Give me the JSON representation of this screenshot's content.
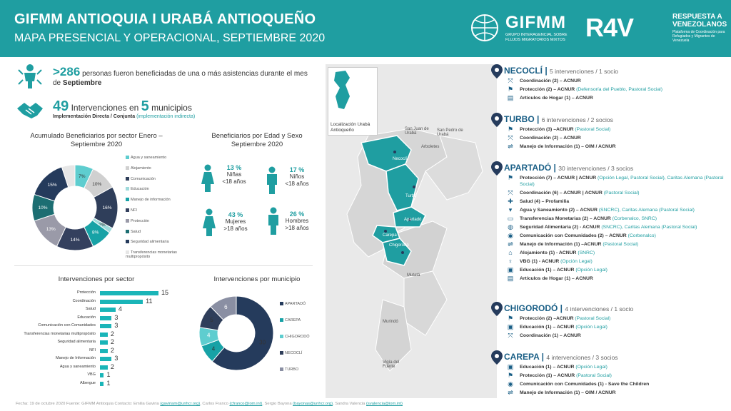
{
  "header": {
    "title": "GIFMM ANTIOQUIA I URABÁ ANTIOQUEÑO",
    "subtitle": "MAPA PRESENCIAL Y OPERACIONAL, SEPTIEMBRE 2020",
    "gifmm_logo": "GIFMM",
    "gifmm_tagline": "GRUPO INTERAGENCIAL SOBRE FLUJOS MIGRATORIOS MIXTOS",
    "r4v_logo": "R4V",
    "r4v_line1": "RESPUESTA A VENEZOLANOS",
    "r4v_line2": "Plataforma de Coordinación para Refugiados y Migrantes de Venezuela"
  },
  "summary": {
    "beneficiaries": ">286",
    "beneficiaries_text": "personas fueron beneficiadas de una o más asistencias durante el mes de",
    "month": "Septiembre",
    "interventions": "49",
    "interventions_text": "Intervenciones en",
    "municipalities": "5",
    "municipalities_text": "municipios",
    "impl_text": "Implementación Directa / Conjunta",
    "impl_indirect": "(implementación indirecta)"
  },
  "donut_sector": {
    "title": "Acumulado Beneficiarios por sector Enero – Septiembre 2020"
  },
  "chart_data": [
    {
      "type": "pie",
      "title": "Acumulado Beneficiarios por sector Enero – Septiembre 2020",
      "categories": [
        "Agua y saneamiento",
        "Alojamiento",
        "Comunicación",
        "Educación",
        "Manejo de información",
        "NFI",
        "Protección",
        "Salud",
        "Seguridad alimentaria",
        "Transferencias monetarias multipropósito"
      ],
      "values": [
        7,
        10,
        16,
        2,
        8,
        14,
        13,
        10,
        15,
        5
      ],
      "labels": [
        "7%",
        "10%",
        "16%",
        "2%",
        "8%",
        "14%",
        "13%",
        "10%",
        "15%",
        ""
      ],
      "colors": [
        "#5ecdcf",
        "#d0d0d0",
        "#2f3e5a",
        "#9fdadb",
        "#17a2a6",
        "#34405e",
        "#9a9aa8",
        "#1c6e72",
        "#253b5c",
        "#e6e6e6"
      ]
    },
    {
      "type": "bar",
      "title": "Intervenciones por sector",
      "categories": [
        "Protección",
        "Coordinación",
        "Salud",
        "Educación",
        "Comunicación con Comunidades",
        "Transferencias monetarias multipropósito",
        "Seguridad alimentaria",
        "NFI",
        "Manejo de Información",
        "Agua y saneamiento",
        "VBG",
        "Albergue"
      ],
      "values": [
        15,
        11,
        4,
        3,
        3,
        2,
        2,
        2,
        3,
        2,
        1,
        1
      ],
      "xlim": [
        0,
        15
      ]
    },
    {
      "type": "pie",
      "title": "Intervenciones por municipio",
      "categories": [
        "APARTADÓ",
        "CAREPA",
        "CHIGORODÓ",
        "NECOCLÍ",
        "TURBO"
      ],
      "values": [
        30,
        4,
        4,
        5,
        6
      ],
      "colors": [
        "#253b5c",
        "#17a2a6",
        "#5ecdcf",
        "#2f3e5a",
        "#8a8fa3"
      ]
    }
  ],
  "age_sex": {
    "title": "Beneficiarios por Edad y Sexo Septiembre 2020",
    "groups": [
      {
        "pct": "13 %",
        "label": "Niñas",
        "sub": "<18 años",
        "share": 13
      },
      {
        "pct": "17 %",
        "label": "Niños",
        "sub": "<18 años",
        "share": 17
      },
      {
        "pct": "43 %",
        "label": "Mujeres",
        "sub": ">18 años",
        "share": 43
      },
      {
        "pct": "26 %",
        "label": "Hombres",
        "sub": ">18 años",
        "share": 26
      }
    ]
  },
  "map": {
    "inset_label": "Localización Urabá Antioqueño",
    "labels": [
      "San Juan de Urabá",
      "Arboletes",
      "San Pedro de Urabá",
      "Necoclí",
      "Turbo",
      "Apartadó",
      "Carepa",
      "Chigorodó",
      "Mutatá",
      "Murindó",
      "Vigía del Fuerte"
    ]
  },
  "municipalities": [
    {
      "name": "NECOCLÍ",
      "meta": "5 intervenciones / 1 socio",
      "acts": [
        {
          "icon": "coordination-icon",
          "text": "Coordinación (2) – ACNUR",
          "extra": ""
        },
        {
          "icon": "protection-icon",
          "text": "Protección (2) – ACNUR",
          "extra": "(Defensoría del Pueblo, Pastoral Social)"
        },
        {
          "icon": "household-items-icon",
          "text": "Artículos de Hogar (1) – ACNUR",
          "extra": ""
        }
      ]
    },
    {
      "name": "TURBO",
      "meta": "6 intervenciones / 2 socios",
      "acts": [
        {
          "icon": "protection-icon",
          "text": "Protección (3) –ACNUR",
          "extra": "(Pastoral Social)"
        },
        {
          "icon": "coordination-icon",
          "text": "Coordinación (2) – ACNUR",
          "extra": ""
        },
        {
          "icon": "information-icon",
          "text": "Manejo de Información (1) – OIM / ACNUR",
          "extra": ""
        }
      ]
    },
    {
      "name": "APARTADÓ",
      "meta": "30 intervenciones / 3 socios",
      "acts": [
        {
          "icon": "protection-icon",
          "text": "Protección (7) – ACNUR | ACNUR",
          "extra": "(Opción Legal, Pastoral Social), Caritas Alemana (Pastoral Social)"
        },
        {
          "icon": "coordination-icon",
          "text": "Coordinación (6) – ACNUR | ACNUR",
          "extra": "(Pastoral Social)"
        },
        {
          "icon": "health-icon",
          "text": "Salud (4) – Profamilia",
          "extra": ""
        },
        {
          "icon": "water-icon",
          "text": "Agua y Saneamiento (2) – ACNUR",
          "extra": "(SNCRC), Caritas Alemana (Pastoral Social)"
        },
        {
          "icon": "cash-icon",
          "text": "Transferencias Monetarias (2) – ACNUR",
          "extra": "(Corbenalco, SNRC)"
        },
        {
          "icon": "food-icon",
          "text": "Seguridad Alimentaria (2) - ACNUR",
          "extra": "(SNCRC), Caritas Alemana (Pastoral Social)"
        },
        {
          "icon": "communication-icon",
          "text": "Comunicación con Comunidades (2) – ACNUR",
          "extra": "(Corbenalco)"
        },
        {
          "icon": "information-icon",
          "text": "Manejo de Información (1) –ACNUR",
          "extra": "(Pastoral Social)"
        },
        {
          "icon": "shelter-icon",
          "text": "Alojamiento (1) - ACNUR",
          "extra": "(SNRC)"
        },
        {
          "icon": "gbv-icon",
          "text": "VBG (1) - ACNUR",
          "extra": "(Opción Legal)"
        },
        {
          "icon": "education-icon",
          "text": "Educación (1) – ACNUR",
          "extra": "(Opción Legal)"
        },
        {
          "icon": "household-items-icon",
          "text": "Artículos de Hogar (1) – ACNUR",
          "extra": ""
        }
      ]
    },
    {
      "name": "CHIGORODÓ",
      "meta": "4 intervenciones / 1 socio",
      "acts": [
        {
          "icon": "protection-icon",
          "text": "Protección (2) –ACNUR",
          "extra": "(Pastoral Social)"
        },
        {
          "icon": "education-icon",
          "text": "Educación (1) – ACNUR",
          "extra": "(Opción Legal)"
        },
        {
          "icon": "coordination-icon",
          "text": "Coordinación (1) – ACNUR",
          "extra": ""
        }
      ]
    },
    {
      "name": "CAREPA",
      "meta": "4 intervenciones / 3 socios",
      "acts": [
        {
          "icon": "education-icon",
          "text": "Educación (1) – ACNUR",
          "extra": "(Opción Legal)"
        },
        {
          "icon": "protection-icon",
          "text": "Protección (1) – ACNUR",
          "extra": "(Pastoral Social)"
        },
        {
          "icon": "communication-icon",
          "text": "Comunicación con Comunidades (1) - Save the Children",
          "extra": ""
        },
        {
          "icon": "information-icon",
          "text": "Manejo de Información (1) – OIM / ACNUR",
          "extra": ""
        }
      ]
    }
  ],
  "footer": {
    "prefix": "Fecha: 19 de octubre 2020   Fuente: GIFMM Antioquia   Contacto: Emilia Gaviria",
    "c1": "(gaviriam@unhcr.org)",
    "m1": ", Carlos Franco",
    "c2": "(cfranco@iom.int)",
    "m2": ", Sergio Bayona",
    "c3": "(bayonas@unhcr.org)",
    "m3": ", Sandra Valencia",
    "c4": "(svalencia@iom.int)"
  }
}
